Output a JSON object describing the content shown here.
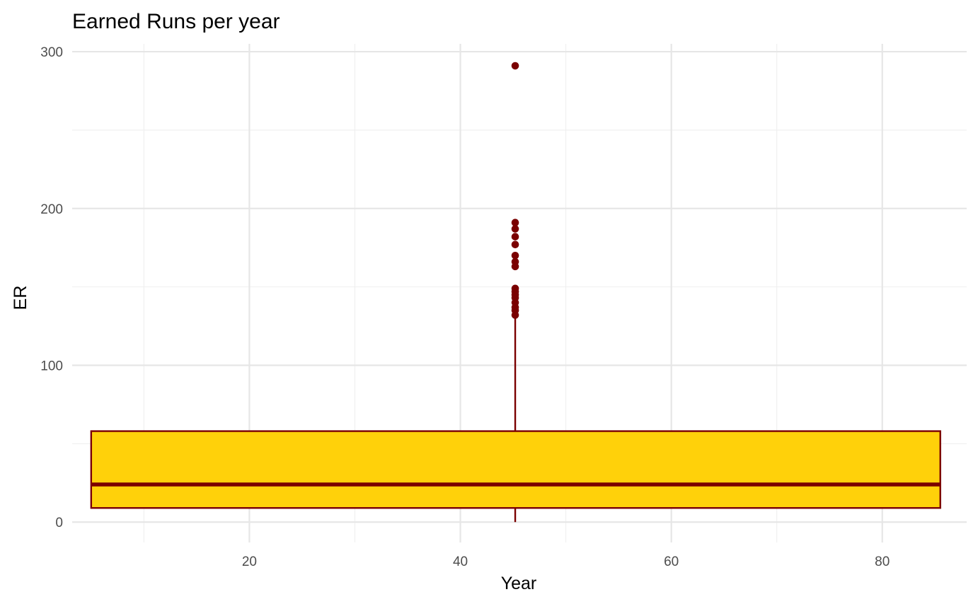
{
  "chart_data": {
    "type": "boxplot",
    "title": "Earned Runs per year",
    "xlabel": "Year",
    "ylabel": "ER",
    "xlim": [
      3.2,
      88
    ],
    "ylim": [
      -13,
      305
    ],
    "x_ticks": [
      20,
      40,
      60,
      80
    ],
    "x_minor_ticks": [
      10,
      30,
      50,
      70
    ],
    "y_ticks": [
      0,
      100,
      200,
      300
    ],
    "y_minor_ticks": [
      50,
      150,
      250
    ],
    "grid": true,
    "legend": "none",
    "box": {
      "x_left": 5,
      "x_right": 85.5,
      "x_center": 45.2,
      "whisker_low": 0,
      "q1": 9,
      "median": 24,
      "q3": 58,
      "whisker_high": 130
    },
    "outliers": [
      132,
      135,
      137,
      140,
      143,
      145,
      147,
      149,
      163,
      166,
      170,
      177,
      182,
      187,
      191,
      291
    ],
    "colors": {
      "box_fill": "#FFD10A",
      "box_stroke": "#7A0000",
      "outlier": "#7A0000",
      "whisker": "#7A0000"
    }
  }
}
